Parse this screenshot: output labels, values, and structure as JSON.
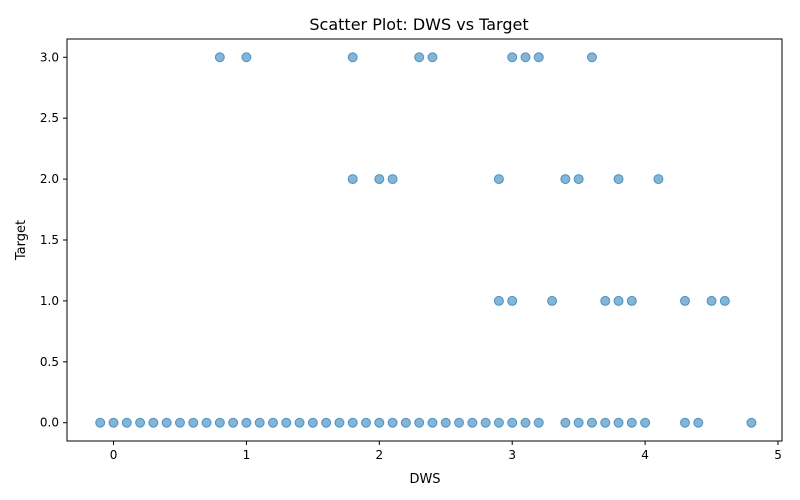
{
  "chart_data": {
    "type": "scatter",
    "title": "Scatter Plot: DWS vs Target",
    "xlabel": "DWS",
    "ylabel": "Target",
    "xlim": [
      -0.35,
      5.03
    ],
    "ylim": [
      -0.15,
      3.15
    ],
    "xticks": [
      0,
      1,
      2,
      3,
      4,
      5
    ],
    "yticks": [
      0.0,
      0.5,
      1.0,
      1.5,
      2.0,
      2.5,
      3.0
    ],
    "xtick_labels": [
      "0",
      "1",
      "2",
      "3",
      "4",
      "5"
    ],
    "ytick_labels": [
      "0.0",
      "0.5",
      "1.0",
      "1.5",
      "2.0",
      "2.5",
      "3.0"
    ],
    "grid": false,
    "marker_color": "#1f77b4",
    "marker_alpha": 0.55,
    "series": [
      {
        "points": [
          [
            -0.1,
            0
          ],
          [
            0.0,
            0
          ],
          [
            0.1,
            0
          ],
          [
            0.2,
            0
          ],
          [
            0.3,
            0
          ],
          [
            0.4,
            0
          ],
          [
            0.5,
            0
          ],
          [
            0.6,
            0
          ],
          [
            0.7,
            0
          ],
          [
            0.8,
            0
          ],
          [
            0.9,
            0
          ],
          [
            1.0,
            0
          ],
          [
            1.1,
            0
          ],
          [
            1.2,
            0
          ],
          [
            1.3,
            0
          ],
          [
            1.4,
            0
          ],
          [
            1.5,
            0
          ],
          [
            1.6,
            0
          ],
          [
            1.7,
            0
          ],
          [
            1.8,
            0
          ],
          [
            1.9,
            0
          ],
          [
            2.0,
            0
          ],
          [
            2.1,
            0
          ],
          [
            2.2,
            0
          ],
          [
            2.3,
            0
          ],
          [
            2.4,
            0
          ],
          [
            2.5,
            0
          ],
          [
            2.6,
            0
          ],
          [
            2.7,
            0
          ],
          [
            2.8,
            0
          ],
          [
            2.9,
            0
          ],
          [
            3.0,
            0
          ],
          [
            3.1,
            0
          ],
          [
            3.2,
            0
          ],
          [
            3.4,
            0
          ],
          [
            3.5,
            0
          ],
          [
            3.6,
            0
          ],
          [
            3.7,
            0
          ],
          [
            3.8,
            0
          ],
          [
            3.9,
            0
          ],
          [
            4.0,
            0
          ],
          [
            4.3,
            0
          ],
          [
            4.4,
            0
          ],
          [
            4.8,
            0
          ],
          [
            2.9,
            1
          ],
          [
            3.0,
            1
          ],
          [
            3.3,
            1
          ],
          [
            3.7,
            1
          ],
          [
            3.8,
            1
          ],
          [
            3.9,
            1
          ],
          [
            4.3,
            1
          ],
          [
            4.5,
            1
          ],
          [
            4.6,
            1
          ],
          [
            1.8,
            2
          ],
          [
            2.0,
            2
          ],
          [
            2.1,
            2
          ],
          [
            2.9,
            2
          ],
          [
            3.4,
            2
          ],
          [
            3.5,
            2
          ],
          [
            3.8,
            2
          ],
          [
            4.1,
            2
          ],
          [
            0.8,
            3
          ],
          [
            1.0,
            3
          ],
          [
            1.8,
            3
          ],
          [
            2.3,
            3
          ],
          [
            2.4,
            3
          ],
          [
            3.0,
            3
          ],
          [
            3.1,
            3
          ],
          [
            3.2,
            3
          ],
          [
            3.6,
            3
          ]
        ]
      }
    ]
  }
}
